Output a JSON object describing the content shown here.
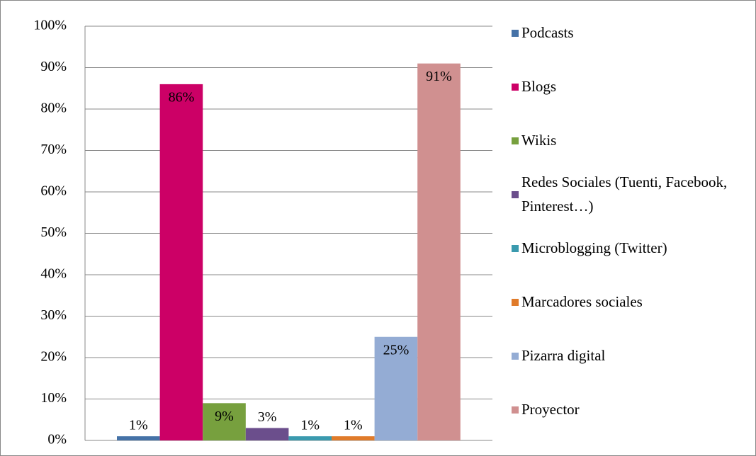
{
  "chart_data": {
    "type": "bar",
    "series": [
      {
        "name": "Podcasts",
        "color": "#4572a7",
        "values": [
          1
        ],
        "value_labels": [
          "1%"
        ]
      },
      {
        "name": "Blogs",
        "color": "#cc0066",
        "values": [
          86
        ],
        "value_labels": [
          "86%"
        ]
      },
      {
        "name": "Wikis",
        "color": "#77a03e",
        "values": [
          9
        ],
        "value_labels": [
          "9%"
        ]
      },
      {
        "name": "Redes Sociales (Tuenti, Facebook, Pinterest…)",
        "color": "#6b4e8c",
        "values": [
          3
        ],
        "value_labels": [
          "3%"
        ]
      },
      {
        "name": "Microblogging (Twitter)",
        "color": "#3a9aae",
        "values": [
          1
        ],
        "value_labels": [
          "1%"
        ]
      },
      {
        "name": "Marcadores sociales",
        "color": "#e07b2a",
        "values": [
          1
        ],
        "value_labels": [
          "1%"
        ]
      },
      {
        "name": "Pizarra digital",
        "color": "#94acd4",
        "values": [
          25
        ],
        "value_labels": [
          "25%"
        ]
      },
      {
        "name": "Proyector",
        "color": "#d09090",
        "values": [
          91
        ],
        "value_labels": [
          "91%"
        ]
      }
    ],
    "ylim": [
      0,
      100
    ],
    "yticks": [
      {
        "value": 0,
        "label": "0%"
      },
      {
        "value": 10,
        "label": "10%"
      },
      {
        "value": 20,
        "label": "20%"
      },
      {
        "value": 30,
        "label": "30%"
      },
      {
        "value": 40,
        "label": "40%"
      },
      {
        "value": 50,
        "label": "50%"
      },
      {
        "value": 60,
        "label": "60%"
      },
      {
        "value": 70,
        "label": "70%"
      },
      {
        "value": 80,
        "label": "80%"
      },
      {
        "value": 90,
        "label": "90%"
      },
      {
        "value": 100,
        "label": "100%"
      }
    ],
    "grid": true,
    "legend": "right"
  }
}
